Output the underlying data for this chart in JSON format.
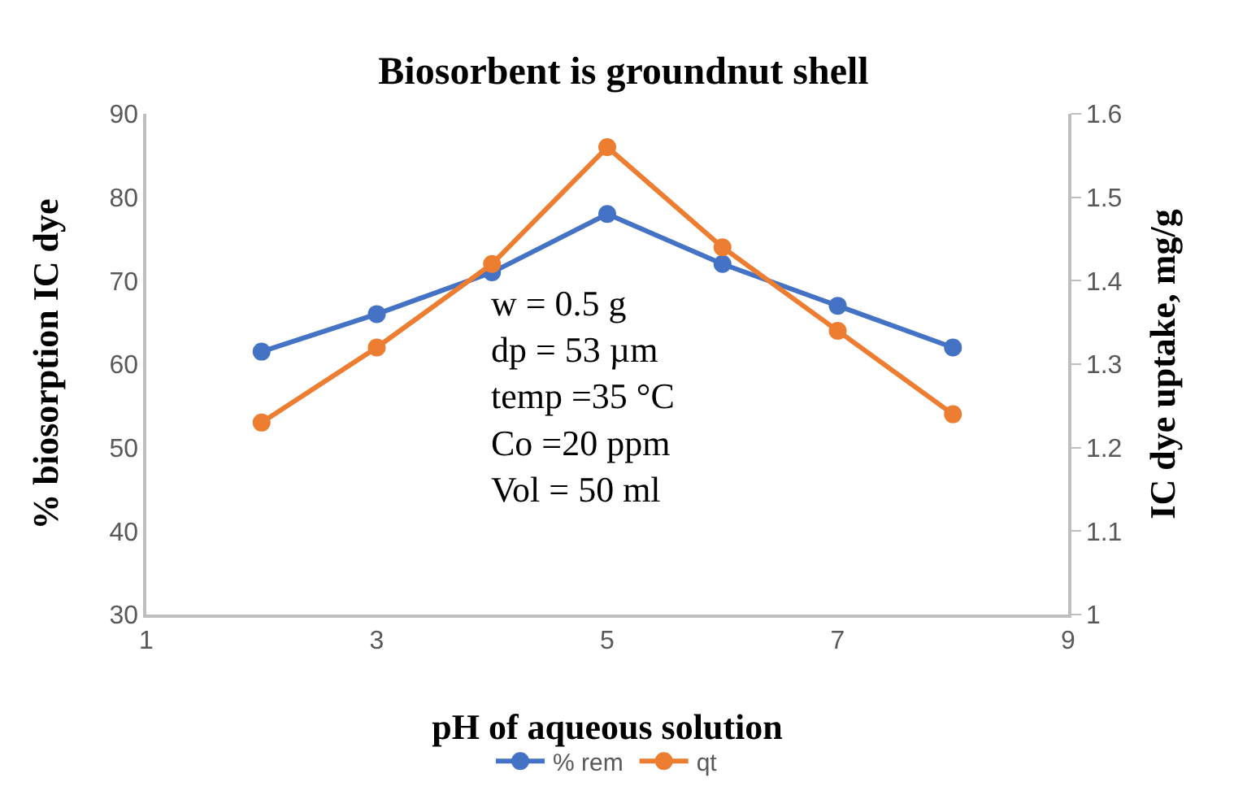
{
  "chart_data": {
    "type": "line",
    "title": "Biosorbent is groundnut shell",
    "xlabel": "pH of aqueous solution",
    "ylabel": "% biosorption IC dye",
    "y2label": "IC dye uptake, mg/g",
    "x": [
      2,
      3,
      4,
      5,
      6,
      7,
      8
    ],
    "series": [
      {
        "name": "% rem",
        "color": "#4472c4",
        "values": [
          61.5,
          66,
          71,
          78,
          72,
          67,
          62
        ]
      },
      {
        "name": "qt",
        "color": "#ed7d31",
        "axis": "y2",
        "values": [
          1.23,
          1.32,
          1.42,
          1.56,
          1.44,
          1.34,
          1.24
        ]
      }
    ],
    "xlim": [
      1,
      9
    ],
    "xticks": [
      1,
      3,
      5,
      7,
      9
    ],
    "ylim": [
      30,
      90
    ],
    "yticks": [
      30,
      40,
      50,
      60,
      70,
      80,
      90
    ],
    "y2lim": [
      1,
      1.6
    ],
    "y2ticks": [
      1,
      1.1,
      1.2,
      1.3,
      1.4,
      1.5,
      1.6
    ],
    "grid": false,
    "legend": "bottom",
    "marker": "circle",
    "line_style": "solid",
    "annotations": [
      "w = 0.5 g\ndp = 53 µm\ntemp =35 °C\nCo =20 ppm\nVol = 50 ml"
    ]
  }
}
